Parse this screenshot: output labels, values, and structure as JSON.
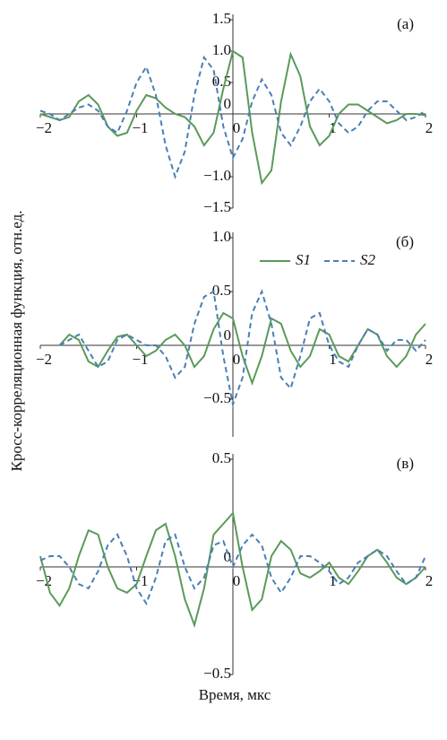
{
  "chart_data": [
    {
      "type": "line",
      "panel_label": "(а)",
      "x": [
        -2,
        -1.9,
        -1.8,
        -1.7,
        -1.6,
        -1.5,
        -1.4,
        -1.3,
        -1.2,
        -1.1,
        -1,
        -0.9,
        -0.8,
        -0.7,
        -0.6,
        -0.5,
        -0.4,
        -0.3,
        -0.2,
        -0.1,
        0,
        0.1,
        0.2,
        0.3,
        0.4,
        0.5,
        0.6,
        0.7,
        0.8,
        0.9,
        1,
        1.1,
        1.2,
        1.3,
        1.4,
        1.5,
        1.6,
        1.7,
        1.8,
        1.9,
        2
      ],
      "series": [
        {
          "color": "#5a9a5a",
          "linestyle": "solid",
          "values": [
            0,
            -0.05,
            -0.1,
            -0.05,
            0.2,
            0.3,
            0.15,
            -0.2,
            -0.35,
            -0.3,
            0.05,
            0.3,
            0.25,
            0.1,
            0,
            -0.05,
            -0.2,
            -0.5,
            -0.3,
            0.4,
            1.0,
            0.9,
            -0.3,
            -1.1,
            -0.9,
            0.2,
            0.95,
            0.6,
            -0.2,
            -0.5,
            -0.35,
            0,
            0.15,
            0.15,
            0.05,
            -0.05,
            -0.15,
            -0.1,
            0,
            0,
            -0.02
          ]
        },
        {
          "color": "#4a7fb5",
          "linestyle": "dashed",
          "values": [
            0.05,
            0,
            -0.1,
            0,
            0.1,
            0.15,
            0.05,
            -0.2,
            -0.3,
            0.05,
            0.5,
            0.75,
            0.3,
            -0.5,
            -1.0,
            -0.6,
            0.3,
            0.9,
            0.7,
            -0.2,
            -0.7,
            -0.4,
            0.2,
            0.55,
            0.3,
            -0.3,
            -0.5,
            -0.2,
            0.2,
            0.4,
            0.2,
            -0.15,
            -0.3,
            -0.2,
            0.05,
            0.2,
            0.2,
            0.05,
            -0.1,
            -0.05,
            0.05
          ]
        }
      ],
      "xlim": [
        -2,
        2
      ],
      "xticks": [
        {
          "value": -2,
          "label": "−2"
        },
        {
          "value": -1,
          "label": "−1"
        },
        0,
        1,
        2
      ],
      "ylim": [
        -1.5,
        1.5
      ],
      "yticks": [
        {
          "value": -1.5,
          "label": "−1.5"
        },
        {
          "value": -1,
          "label": "−1.0"
        },
        0,
        0.5,
        {
          "value": 1,
          "label": "1.0"
        },
        1.5
      ]
    },
    {
      "type": "line",
      "panel_label": "(б)",
      "ylabel": "Кросс-корреляционная функция, отн.ед.",
      "legend": "upper right",
      "x": [
        -2,
        -1.9,
        -1.8,
        -1.7,
        -1.6,
        -1.5,
        -1.4,
        -1.3,
        -1.2,
        -1.1,
        -1,
        -0.9,
        -0.8,
        -0.7,
        -0.6,
        -0.5,
        -0.4,
        -0.3,
        -0.2,
        -0.1,
        0,
        0.1,
        0.2,
        0.3,
        0.4,
        0.5,
        0.6,
        0.7,
        0.8,
        0.9,
        1,
        1.1,
        1.2,
        1.3,
        1.4,
        1.5,
        1.6,
        1.7,
        1.8,
        1.9,
        2
      ],
      "series": [
        {
          "name": "S1",
          "color": "#5a9a5a",
          "linestyle": "solid",
          "values": [
            null,
            null,
            0,
            0.1,
            0.05,
            -0.15,
            -0.2,
            -0.05,
            0.08,
            0.1,
            0,
            -0.1,
            -0.05,
            0.05,
            0.1,
            0,
            -0.2,
            -0.1,
            0.15,
            0.3,
            0.25,
            -0.1,
            -0.35,
            -0.1,
            0.25,
            0.2,
            -0.05,
            -0.2,
            -0.1,
            0.15,
            0.1,
            -0.1,
            -0.15,
            0,
            0.15,
            0.1,
            -0.1,
            -0.2,
            -0.1,
            0.1,
            0.2
          ]
        },
        {
          "name": "S2",
          "color": "#4a7fb5",
          "linestyle": "dashed",
          "values": [
            null,
            null,
            0,
            0.05,
            0.1,
            -0.05,
            -0.2,
            -0.15,
            0.05,
            0.1,
            0.05,
            0,
            0,
            -0.1,
            -0.3,
            -0.2,
            0.2,
            0.45,
            0.5,
            -0.1,
            -0.55,
            -0.3,
            0.3,
            0.5,
            0.2,
            -0.3,
            -0.4,
            -0.1,
            0.25,
            0.3,
            0,
            -0.15,
            -0.2,
            0,
            0.15,
            0.1,
            -0.05,
            0.05,
            0.05,
            -0.05,
            0.05
          ]
        }
      ],
      "xlim": [
        -2,
        2
      ],
      "xticks": [
        {
          "value": -2,
          "label": "−2"
        },
        {
          "value": -1,
          "label": "−1"
        },
        0,
        1,
        2
      ],
      "ylim": [
        -0.85,
        1.0
      ],
      "yticks": [
        {
          "value": -0.5,
          "label": "−0.5"
        },
        0,
        0.5,
        {
          "value": 1,
          "label": "1.0"
        }
      ]
    },
    {
      "type": "line",
      "panel_label": "(в)",
      "xlabel": "Время, мкс",
      "x": [
        -2,
        -1.9,
        -1.8,
        -1.7,
        -1.6,
        -1.5,
        -1.4,
        -1.3,
        -1.2,
        -1.1,
        -1,
        -0.9,
        -0.8,
        -0.7,
        -0.6,
        -0.5,
        -0.4,
        -0.3,
        -0.2,
        -0.1,
        0,
        0.1,
        0.2,
        0.3,
        0.4,
        0.5,
        0.6,
        0.7,
        0.8,
        0.9,
        1,
        1.1,
        1.2,
        1.3,
        1.4,
        1.5,
        1.6,
        1.7,
        1.8,
        1.9,
        2
      ],
      "series": [
        {
          "color": "#5a9a5a",
          "linestyle": "solid",
          "values": [
            0.05,
            -0.12,
            -0.18,
            -0.1,
            0.05,
            0.17,
            0.15,
            0,
            -0.1,
            -0.12,
            -0.08,
            0.05,
            0.17,
            0.2,
            0.05,
            -0.15,
            -0.27,
            -0.1,
            0.15,
            0.2,
            0.25,
            0,
            -0.2,
            -0.15,
            0.05,
            0.12,
            0.08,
            -0.03,
            -0.05,
            -0.02,
            0.02,
            -0.05,
            -0.08,
            -0.02,
            0.05,
            0.08,
            0.02,
            -0.05,
            -0.08,
            -0.05,
            0
          ]
        },
        {
          "color": "#4a7fb5",
          "linestyle": "dashed",
          "values": [
            0.03,
            0.05,
            0.05,
            0,
            -0.08,
            -0.1,
            -0.02,
            0.1,
            0.15,
            0.05,
            -0.1,
            -0.17,
            -0.05,
            0.12,
            0.15,
            0,
            -0.1,
            -0.05,
            0.1,
            0.12,
            0,
            0.1,
            0.15,
            0.1,
            -0.05,
            -0.12,
            -0.05,
            0.05,
            0.05,
            0.02,
            -0.02,
            -0.08,
            -0.05,
            0.02,
            0.05,
            0.08,
            0.05,
            -0.02,
            -0.08,
            -0.05,
            0.05
          ]
        }
      ],
      "xlim": [
        -2,
        2
      ],
      "xticks": [
        {
          "value": -2,
          "label": "−2"
        },
        {
          "value": -1,
          "label": "−1"
        },
        0,
        1,
        2
      ],
      "ylim": [
        -0.5,
        0.5
      ],
      "yticks": [
        {
          "value": -0.5,
          "label": "−0.5"
        },
        0,
        0.5
      ]
    }
  ]
}
